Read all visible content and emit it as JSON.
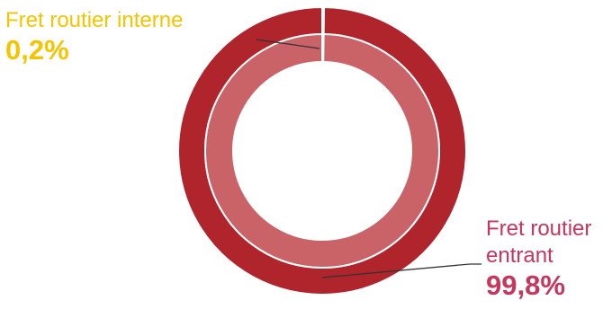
{
  "chart_data": {
    "type": "pie",
    "categories": [
      "Fret routier interne",
      "Fret routier entrant"
    ],
    "values": [
      0.2,
      99.8
    ],
    "value_labels": [
      "0,2%",
      "99,8%"
    ],
    "unit": "%",
    "style": "donut",
    "legend": "none"
  },
  "labels": {
    "interne": {
      "name": "Fret routier interne",
      "value": "0,2%"
    },
    "entrant": {
      "name_line1": "Fret routier",
      "name_line2": "entrant",
      "value": "99,8%"
    }
  },
  "colors": {
    "outer_ring": "#b0242b",
    "inner_ring": "#c96368",
    "interne_text": "#f5c400",
    "entrant_text": "#c7365c",
    "leader_line": "#333333"
  }
}
